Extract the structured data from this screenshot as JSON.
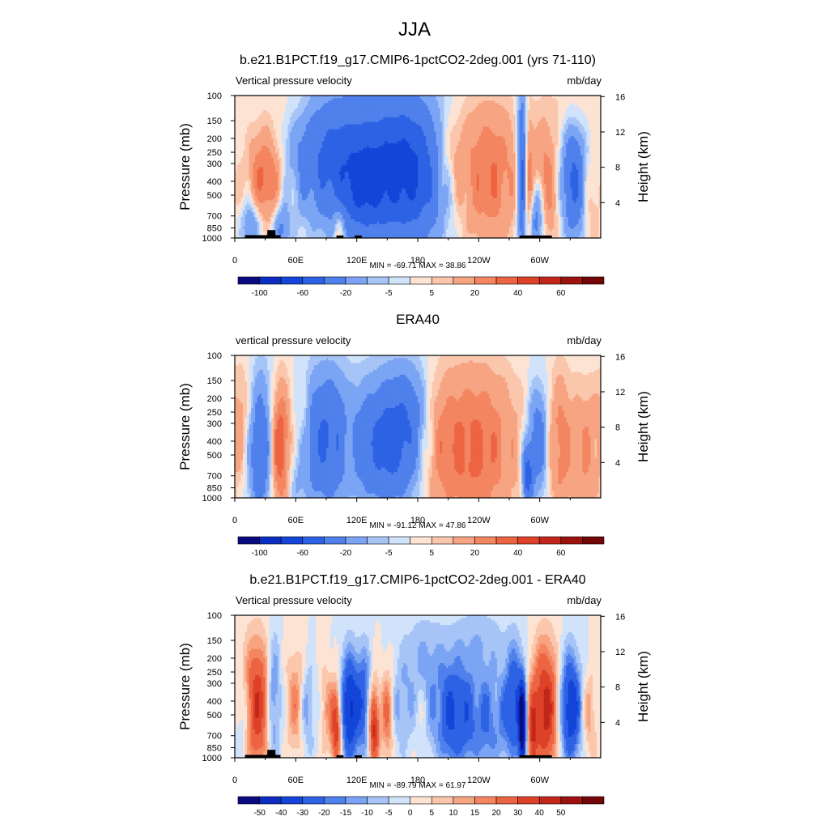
{
  "figure": {
    "title": "JJA"
  },
  "chart_data": [
    {
      "type": "heatmap",
      "title": "b.e21.B1PCT.f19_g17.CMIP6-1pctCO2-2deg.001 (yrs 71-110)",
      "left_label": "Vertical pressure velocity",
      "right_label": "mb/day",
      "ylabel": "Pressure (mb)",
      "y2label": "Height (km)",
      "x_ticks": [
        "0",
        "60E",
        "120E",
        "180",
        "120W",
        "60W"
      ],
      "xlim": [
        0,
        360
      ],
      "y_ticks": [
        "100",
        "150",
        "200",
        "250",
        "300",
        "400",
        "500",
        "700",
        "850",
        "1000"
      ],
      "ylim": [
        1000,
        100
      ],
      "y_scale": "log",
      "y2_ticks": [
        "4",
        "8",
        "12",
        "16"
      ],
      "stats": "MIN = -69.71  MAX =  38.86",
      "min": -69.71,
      "max": 38.86,
      "colorbar_labels": [
        "-100",
        "-60",
        "-20",
        "-5",
        "5",
        "20",
        "40",
        "60"
      ],
      "levels": [
        -120,
        -100,
        -80,
        -60,
        -40,
        -20,
        -10,
        -5,
        0,
        5,
        10,
        20,
        30,
        40,
        50,
        60,
        70
      ],
      "topography": true,
      "features": [
        {
          "lon": 30,
          "p": 380,
          "v": 35,
          "w": 12,
          "ph": 0.55
        },
        {
          "lon": 17,
          "p": 800,
          "v": -25,
          "w": 7,
          "ph": 0.3
        },
        {
          "lon": 45,
          "p": 850,
          "v": -25,
          "w": 6,
          "ph": 0.3
        },
        {
          "lon": 95,
          "p": 260,
          "v": -42,
          "w": 28,
          "ph": 0.7
        },
        {
          "lon": 155,
          "p": 300,
          "v": -48,
          "w": 28,
          "ph": 0.8
        },
        {
          "lon": 180,
          "p": 380,
          "v": -30,
          "w": 20,
          "ph": 0.8
        },
        {
          "lon": 125,
          "p": 500,
          "v": -30,
          "w": 18,
          "ph": 0.5
        },
        {
          "lon": 103,
          "p": 800,
          "v": 20,
          "w": 4,
          "ph": 0.3
        },
        {
          "lon": 250,
          "p": 350,
          "v": 30,
          "w": 22,
          "ph": 0.8
        },
        {
          "lon": 210,
          "p": 260,
          "v": 12,
          "w": 12,
          "ph": 0.45
        },
        {
          "lon": 283,
          "p": 350,
          "v": -60,
          "w": 3.5,
          "ph": 0.9
        },
        {
          "lon": 288,
          "p": 450,
          "v": 30,
          "w": 3.5,
          "ph": 0.8
        },
        {
          "lon": 305,
          "p": 450,
          "v": 28,
          "w": 9,
          "ph": 0.7
        },
        {
          "lon": 297,
          "p": 700,
          "v": -40,
          "w": 6,
          "ph": 0.45
        },
        {
          "lon": 333,
          "p": 400,
          "v": -45,
          "w": 8,
          "ph": 0.6
        },
        {
          "lon": 352,
          "p": 600,
          "v": 10,
          "w": 6,
          "ph": 0.6
        },
        {
          "lon": 60,
          "p": 120,
          "v": 6,
          "w": 18,
          "ph": 0.3
        },
        {
          "lon": 330,
          "p": 120,
          "v": 5,
          "w": 20,
          "ph": 0.3
        }
      ]
    },
    {
      "type": "heatmap",
      "title": "ERA40",
      "left_label": "vertical pressure velocity",
      "right_label": "mb/day",
      "ylabel": "Pressure (mb)",
      "y2label": "Height (km)",
      "x_ticks": [
        "0",
        "60E",
        "120E",
        "180",
        "120W",
        "60W"
      ],
      "xlim": [
        0,
        360
      ],
      "y_ticks": [
        "100",
        "150",
        "200",
        "250",
        "300",
        "400",
        "500",
        "700",
        "850",
        "1000"
      ],
      "ylim": [
        1000,
        100
      ],
      "y_scale": "log",
      "y2_ticks": [
        "4",
        "8",
        "12",
        "16"
      ],
      "stats": "MIN = -91.12  MAX =  47.86",
      "min": -91.12,
      "max": 47.86,
      "colorbar_labels": [
        "-100",
        "-60",
        "-20",
        "-5",
        "5",
        "20",
        "40",
        "60"
      ],
      "levels": [
        -120,
        -100,
        -80,
        -60,
        -40,
        -20,
        -10,
        -5,
        0,
        5,
        10,
        20,
        30,
        40,
        50,
        60,
        70
      ],
      "topography": false,
      "features": [
        {
          "lon": 8,
          "p": 300,
          "v": 15,
          "w": 8,
          "ph": 0.7
        },
        {
          "lon": 25,
          "p": 450,
          "v": -38,
          "w": 9,
          "ph": 0.8
        },
        {
          "lon": 45,
          "p": 450,
          "v": 45,
          "w": 7,
          "ph": 0.7
        },
        {
          "lon": 67,
          "p": 350,
          "v": 12,
          "w": 5,
          "ph": 0.6
        },
        {
          "lon": 90,
          "p": 380,
          "v": -42,
          "w": 16,
          "ph": 0.75
        },
        {
          "lon": 112,
          "p": 450,
          "v": 10,
          "w": 4,
          "ph": 0.6
        },
        {
          "lon": 150,
          "p": 420,
          "v": -48,
          "w": 22,
          "ph": 0.7
        },
        {
          "lon": 172,
          "p": 250,
          "v": -18,
          "w": 15,
          "ph": 0.6
        },
        {
          "lon": 235,
          "p": 450,
          "v": 34,
          "w": 30,
          "ph": 0.9
        },
        {
          "lon": 200,
          "p": 400,
          "v": 10,
          "w": 12,
          "ph": 0.7
        },
        {
          "lon": 288,
          "p": 700,
          "v": -50,
          "w": 3.5,
          "ph": 0.35
        },
        {
          "lon": 298,
          "p": 400,
          "v": -35,
          "w": 7,
          "ph": 0.6
        },
        {
          "lon": 320,
          "p": 420,
          "v": 25,
          "w": 8,
          "ph": 0.8
        },
        {
          "lon": 345,
          "p": 500,
          "v": 20,
          "w": 10,
          "ph": 0.8
        },
        {
          "lon": 60,
          "p": 700,
          "v": -10,
          "w": 10,
          "ph": 0.5
        }
      ]
    },
    {
      "type": "heatmap",
      "title": "b.e21.B1PCT.f19_g17.CMIP6-1pctCO2-2deg.001 - ERA40",
      "left_label": "Vertical pressure velocity",
      "right_label": "mb/day",
      "ylabel": "Pressure (mb)",
      "y2label": "Height (km)",
      "x_ticks": [
        "0",
        "60E",
        "120E",
        "180",
        "120W",
        "60W"
      ],
      "xlim": [
        0,
        360
      ],
      "y_ticks": [
        "100",
        "150",
        "200",
        "250",
        "300",
        "400",
        "500",
        "700",
        "850",
        "1000"
      ],
      "ylim": [
        1000,
        100
      ],
      "y_scale": "log",
      "y2_ticks": [
        "4",
        "8",
        "12",
        "16"
      ],
      "stats": "MIN = -89.79  MAX =  61.97",
      "min": -89.79,
      "max": 61.97,
      "colorbar_labels": [
        "-50",
        "-40",
        "-30",
        "-20",
        "-15",
        "-10",
        "-5",
        "0",
        "5",
        "10",
        "15",
        "20",
        "30",
        "40",
        "50"
      ],
      "levels": [
        -60,
        -50,
        -40,
        -30,
        -20,
        -15,
        -10,
        -5,
        0,
        5,
        10,
        15,
        20,
        30,
        40,
        50,
        60
      ],
      "topography": true,
      "features": [
        {
          "lon": 22,
          "p": 420,
          "v": 38,
          "w": 10,
          "ph": 0.7
        },
        {
          "lon": 38,
          "p": 400,
          "v": -25,
          "w": 5,
          "ph": 0.7
        },
        {
          "lon": 8,
          "p": 500,
          "v": -15,
          "w": 5,
          "ph": 0.5
        },
        {
          "lon": 60,
          "p": 400,
          "v": 15,
          "w": 7,
          "ph": 0.6
        },
        {
          "lon": 72,
          "p": 450,
          "v": -15,
          "w": 5,
          "ph": 0.5
        },
        {
          "lon": 90,
          "p": 450,
          "v": 12,
          "w": 5,
          "ph": 0.5
        },
        {
          "lon": 100,
          "p": 600,
          "v": 40,
          "w": 3.5,
          "ph": 0.45
        },
        {
          "lon": 113,
          "p": 450,
          "v": -45,
          "w": 6,
          "ph": 0.6
        },
        {
          "lon": 137,
          "p": 600,
          "v": 45,
          "w": 3.5,
          "ph": 0.45
        },
        {
          "lon": 127,
          "p": 400,
          "v": -25,
          "w": 5,
          "ph": 0.6
        },
        {
          "lon": 150,
          "p": 500,
          "v": 20,
          "w": 4,
          "ph": 0.5
        },
        {
          "lon": 165,
          "p": 450,
          "v": -12,
          "w": 6,
          "ph": 0.5
        },
        {
          "lon": 215,
          "p": 500,
          "v": -30,
          "w": 14,
          "ph": 0.6
        },
        {
          "lon": 250,
          "p": 550,
          "v": -18,
          "w": 16,
          "ph": 0.6
        },
        {
          "lon": 275,
          "p": 400,
          "v": -30,
          "w": 6,
          "ph": 0.6
        },
        {
          "lon": 283,
          "p": 600,
          "v": -60,
          "w": 2.5,
          "ph": 0.5
        },
        {
          "lon": 305,
          "p": 450,
          "v": 45,
          "w": 9,
          "ph": 0.7
        },
        {
          "lon": 293,
          "p": 700,
          "v": 28,
          "w": 3,
          "ph": 0.45
        },
        {
          "lon": 330,
          "p": 450,
          "v": -42,
          "w": 7,
          "ph": 0.6
        },
        {
          "lon": 350,
          "p": 500,
          "v": 12,
          "w": 5,
          "ph": 0.5
        },
        {
          "lon": 185,
          "p": 200,
          "v": -10,
          "w": 15,
          "ph": 0.5
        },
        {
          "lon": 240,
          "p": 150,
          "v": -8,
          "w": 20,
          "ph": 0.4
        }
      ]
    }
  ],
  "colormap": [
    "#0a0a80",
    "#0b2dc2",
    "#1346d8",
    "#2e62e4",
    "#4f80ec",
    "#7ba4f4",
    "#a7c4f7",
    "#d0e3fa",
    "#fde3d3",
    "#fac6ac",
    "#f7a482",
    "#f38660",
    "#ec6442",
    "#dd4228",
    "#c2261a",
    "#9c120f",
    "#730606"
  ]
}
